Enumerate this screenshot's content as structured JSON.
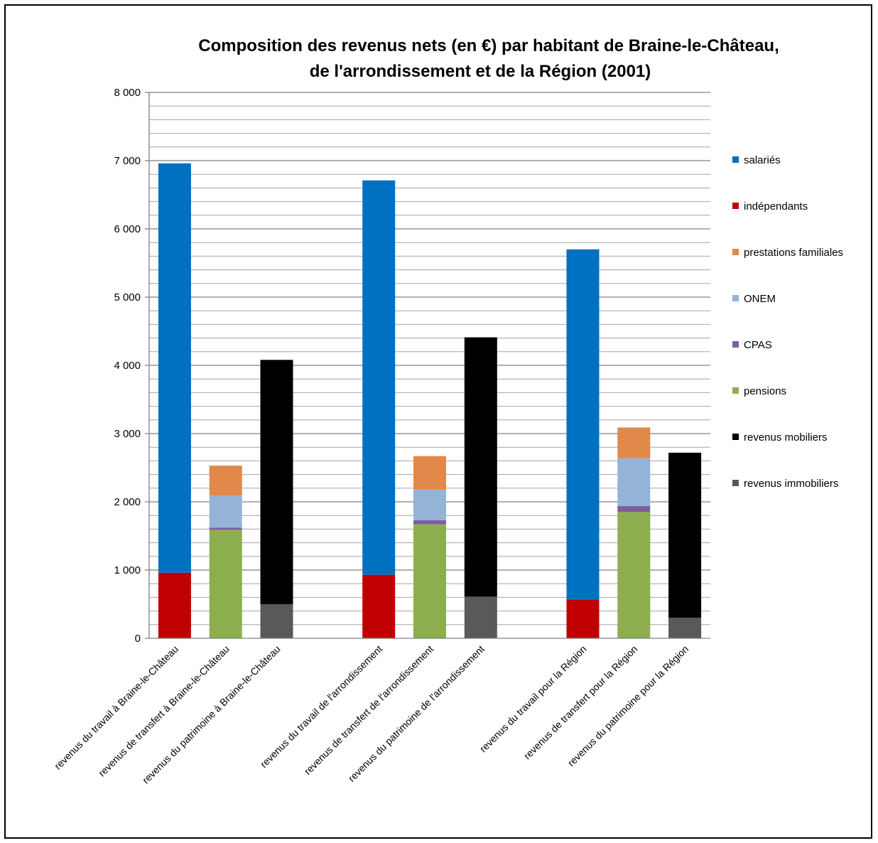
{
  "chart_data": {
    "type": "bar",
    "stacked": true,
    "title_lines": [
      "Composition  des revenus nets (en €) par habitant de Braine-le-Château,",
      "de l'arrondissement  et de la Région (2001)"
    ],
    "xlabel": "",
    "ylabel": "",
    "ylim": [
      0,
      8000
    ],
    "y_major_step": 1000,
    "y_minor_step": 200,
    "y_tick_labels": [
      "0",
      "1 000",
      "2 000",
      "3 000",
      "4 000",
      "5 000",
      "6 000",
      "7 000",
      "8 000"
    ],
    "grid": true,
    "legend_position": "right",
    "categories": [
      "revenus du travail  à Braine-le-Château",
      "revenus de transfert à Braine-le-Château",
      "revenus du patrimoine  à Braine-le-Château",
      "",
      "revenus du travail  de l'arrondissement",
      "revenus de transfert de l'arrondissement",
      "revenus du patrimoine de l'arrondissement",
      "",
      "revenus du travail  pour la Région",
      "revenus de transfert pour la Région",
      "revenus du patrimoine  pour la Région"
    ],
    "series": [
      {
        "name": "revenus immobiliers",
        "color": "#595959",
        "values": [
          0,
          0,
          500,
          null,
          0,
          0,
          610,
          null,
          0,
          0,
          300
        ]
      },
      {
        "name": "revenus mobiliers",
        "color": "#000000",
        "values": [
          0,
          0,
          3580,
          null,
          0,
          0,
          3800,
          null,
          0,
          0,
          2420
        ]
      },
      {
        "name": "pensions",
        "color": "#8DAE4F",
        "values": [
          0,
          1590,
          0,
          null,
          0,
          1670,
          0,
          null,
          0,
          1850,
          0
        ]
      },
      {
        "name": "CPAS",
        "color": "#7E5F9E",
        "values": [
          0,
          30,
          0,
          null,
          0,
          60,
          0,
          null,
          0,
          90,
          0
        ]
      },
      {
        "name": "ONEM",
        "color": "#95B3D7",
        "values": [
          0,
          470,
          0,
          null,
          0,
          450,
          0,
          null,
          0,
          700,
          0
        ]
      },
      {
        "name": "prestations familiales",
        "color": "#E0894A",
        "values": [
          0,
          440,
          0,
          null,
          0,
          490,
          0,
          null,
          0,
          450,
          0
        ]
      },
      {
        "name": "indépendants",
        "color": "#C00000",
        "values": [
          960,
          0,
          0,
          null,
          930,
          0,
          0,
          null,
          570,
          0,
          0
        ]
      },
      {
        "name": "salariés",
        "color": "#0070C0",
        "values": [
          6000,
          0,
          0,
          null,
          5780,
          0,
          0,
          null,
          5130,
          0,
          0
        ]
      }
    ],
    "legend_order": [
      "salariés",
      "indépendants",
      "prestations familiales",
      "ONEM",
      "CPAS",
      "pensions",
      "revenus mobiliers",
      "revenus immobiliers"
    ]
  }
}
